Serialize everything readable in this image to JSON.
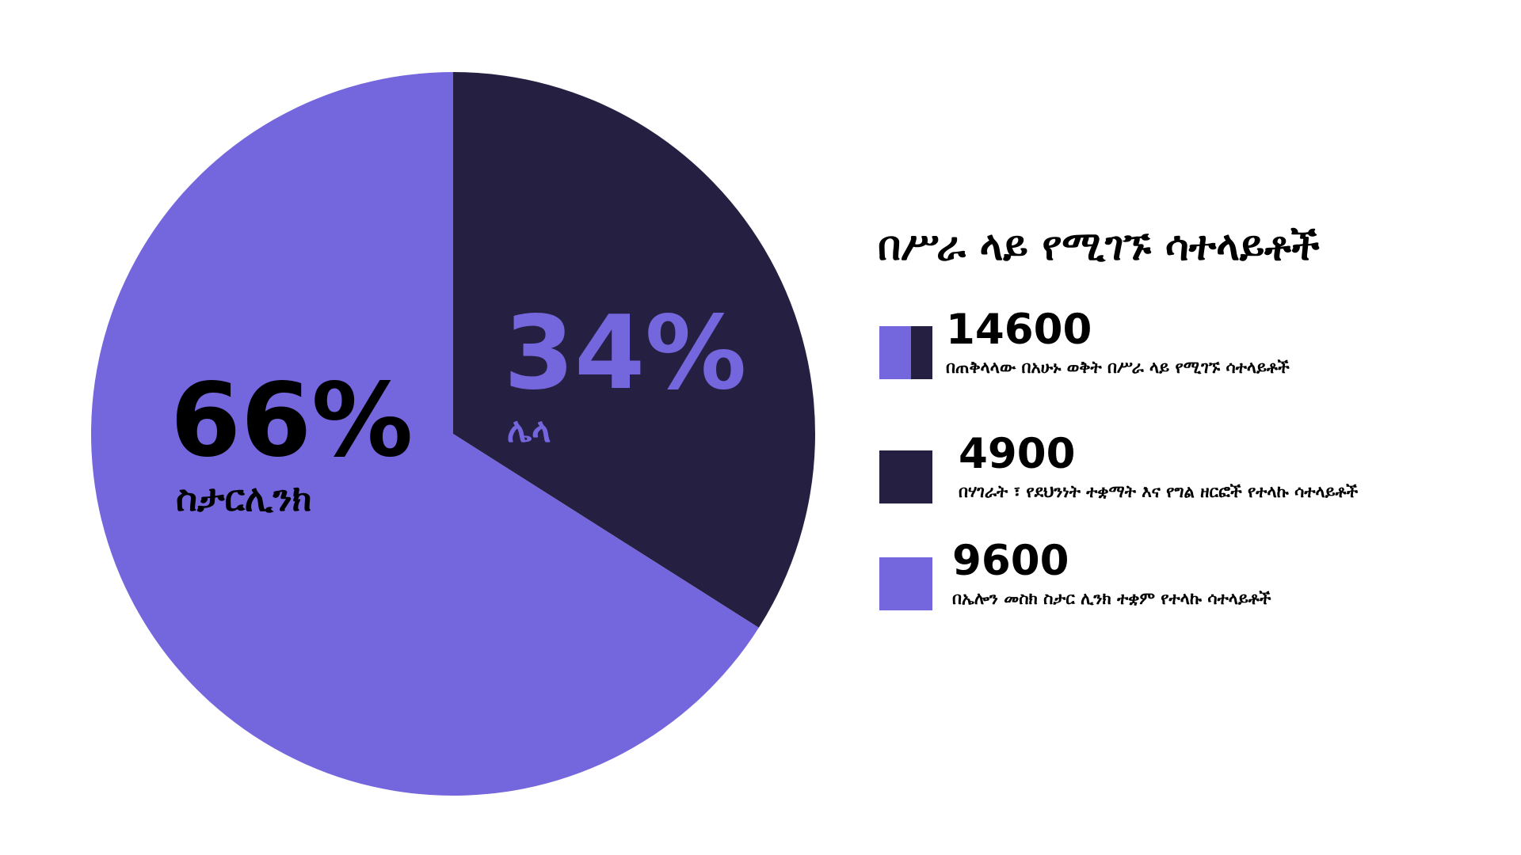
{
  "colors": {
    "starlink": "#7466dc",
    "other": "#251f42",
    "text": "#000000",
    "background": "#ffffff"
  },
  "chart_data": {
    "type": "pie",
    "slices": [
      {
        "label": "ስታርሊንክ",
        "percent_label": "66%",
        "value": 66,
        "color": "#7466dc"
      },
      {
        "label": "ሌላ",
        "percent_label": "34%",
        "value": 34,
        "color": "#251f42"
      }
    ]
  },
  "legend": {
    "title": "በሥራ ላይ የሚገኙ ሳተላይቶች",
    "items": [
      {
        "value": "14600",
        "description": "በጠቅላላው በአሁኑ ወቅት በሥራ ላይ የሚገኙ ሳተላይቶች",
        "swatch": "split"
      },
      {
        "value": "4900",
        "description": "በሃገራት ፣ የደህንነት ተቋማት እና የግል ዘርፎች የተላኩ ሳተላይቶች",
        "swatch": "other"
      },
      {
        "value": "9600",
        "description": "በኤሎን መስክ ስታር ሊንክ ተቋም የተላኩ ሳተላይቶች",
        "swatch": "starlink"
      }
    ]
  }
}
